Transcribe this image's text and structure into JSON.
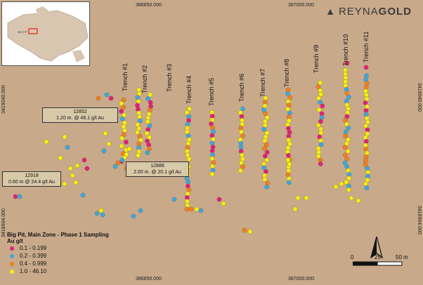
{
  "brand": {
    "name_light": "REYNA",
    "name_bold": "GOLD"
  },
  "inset": {
    "label": "BIG PIT"
  },
  "coords": {
    "top": [
      "386850.000",
      "387000.000"
    ],
    "bottom": [
      "386850.000",
      "387000.000"
    ],
    "left": [
      "3419040.000",
      "3418904.000"
    ],
    "right": [
      "3419040.000",
      "3418904.000"
    ]
  },
  "trenches": [
    "Trench #1",
    "Trench #2",
    "Trench #3",
    "Trench #4",
    "Trench #5",
    "Trench #6",
    "Trench #7",
    "Trench #8",
    "Trench #9",
    "Trench #10",
    "Trench #11"
  ],
  "callouts": [
    {
      "id": "12852",
      "text": "1.20 m. @ 46.1 g/t Au"
    },
    {
      "id": "12918",
      "text": "0.60 m @ 24.4 g/t Au"
    },
    {
      "id": "12888",
      "text": "2.00 m. @ 20.1 g/t Au"
    }
  ],
  "legend": {
    "title": "Big Pit, Main Zone - Phase 1  Sampling",
    "subtitle": "Au g/t",
    "items": [
      {
        "label": "0.1 - 0.199",
        "color": "#e0207a"
      },
      {
        "label": "0.2 - 0.399",
        "color": "#3aa8e0"
      },
      {
        "label": "0.4 - 0.999",
        "color": "#f07f1e"
      },
      {
        "label": "1.0 - 46.10",
        "color": "#f5ee10"
      }
    ]
  },
  "scale": {
    "ticks": [
      "0",
      "25",
      "50 m"
    ]
  }
}
